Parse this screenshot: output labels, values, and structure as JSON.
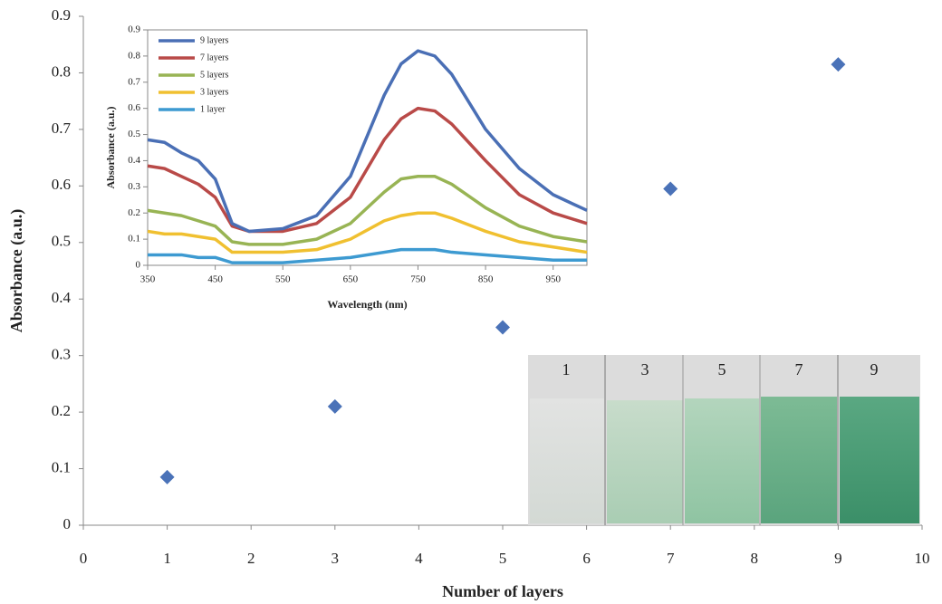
{
  "chart_data": [
    {
      "type": "scatter",
      "xlabel": "Number of layers",
      "ylabel": "Absorbance (a.u.)",
      "x": [
        1,
        3,
        5,
        7,
        9
      ],
      "values": [
        0.085,
        0.21,
        0.35,
        0.595,
        0.815
      ],
      "color": "#4a72b8",
      "xlim": [
        0,
        10
      ],
      "xticks": [
        0,
        1,
        2,
        3,
        4,
        5,
        6,
        7,
        8,
        9,
        10
      ],
      "ylim": [
        0,
        0.9
      ],
      "yticks": [
        0,
        0.1,
        0.2,
        0.3,
        0.4,
        0.5,
        0.6,
        0.7,
        0.8,
        0.9
      ]
    },
    {
      "type": "line",
      "xlabel": "Wavelength (nm)",
      "ylabel": "Absorbance (a.u.)",
      "legend": "top-left",
      "x": [
        350,
        375,
        400,
        425,
        450,
        475,
        500,
        550,
        600,
        650,
        700,
        725,
        750,
        775,
        800,
        850,
        900,
        950,
        1000
      ],
      "series": [
        {
          "name": "9 layers",
          "color": "#4a6fb5",
          "values": [
            0.48,
            0.47,
            0.43,
            0.4,
            0.33,
            0.16,
            0.13,
            0.14,
            0.19,
            0.34,
            0.65,
            0.77,
            0.82,
            0.8,
            0.73,
            0.52,
            0.37,
            0.27,
            0.21
          ]
        },
        {
          "name": "7 layers",
          "color": "#b94a48",
          "values": [
            0.38,
            0.37,
            0.34,
            0.31,
            0.26,
            0.15,
            0.13,
            0.13,
            0.16,
            0.26,
            0.48,
            0.56,
            0.6,
            0.59,
            0.54,
            0.4,
            0.27,
            0.2,
            0.16
          ]
        },
        {
          "name": "5 layers",
          "color": "#98b454",
          "values": [
            0.21,
            0.2,
            0.19,
            0.17,
            0.15,
            0.09,
            0.08,
            0.08,
            0.1,
            0.16,
            0.28,
            0.33,
            0.34,
            0.34,
            0.31,
            0.22,
            0.15,
            0.11,
            0.09
          ]
        },
        {
          "name": "3 layers",
          "color": "#f0c030",
          "values": [
            0.13,
            0.12,
            0.12,
            0.11,
            0.1,
            0.05,
            0.05,
            0.05,
            0.06,
            0.1,
            0.17,
            0.19,
            0.2,
            0.2,
            0.18,
            0.13,
            0.09,
            0.07,
            0.05
          ]
        },
        {
          "name": "1 layer",
          "color": "#3d9ad1",
          "values": [
            0.04,
            0.04,
            0.04,
            0.03,
            0.03,
            0.01,
            0.01,
            0.01,
            0.02,
            0.03,
            0.05,
            0.06,
            0.06,
            0.06,
            0.05,
            0.04,
            0.03,
            0.02,
            0.02
          ]
        }
      ],
      "xlim": [
        350,
        1000
      ],
      "xticks": [
        350,
        450,
        550,
        650,
        750,
        850,
        950
      ],
      "ylim": [
        0,
        0.9
      ],
      "yticks": [
        0,
        0.1,
        0.2,
        0.3,
        0.4,
        0.5,
        0.6,
        0.7,
        0.8,
        0.9
      ]
    }
  ],
  "photo_labels": [
    "1",
    "3",
    "5",
    "7",
    "9"
  ]
}
